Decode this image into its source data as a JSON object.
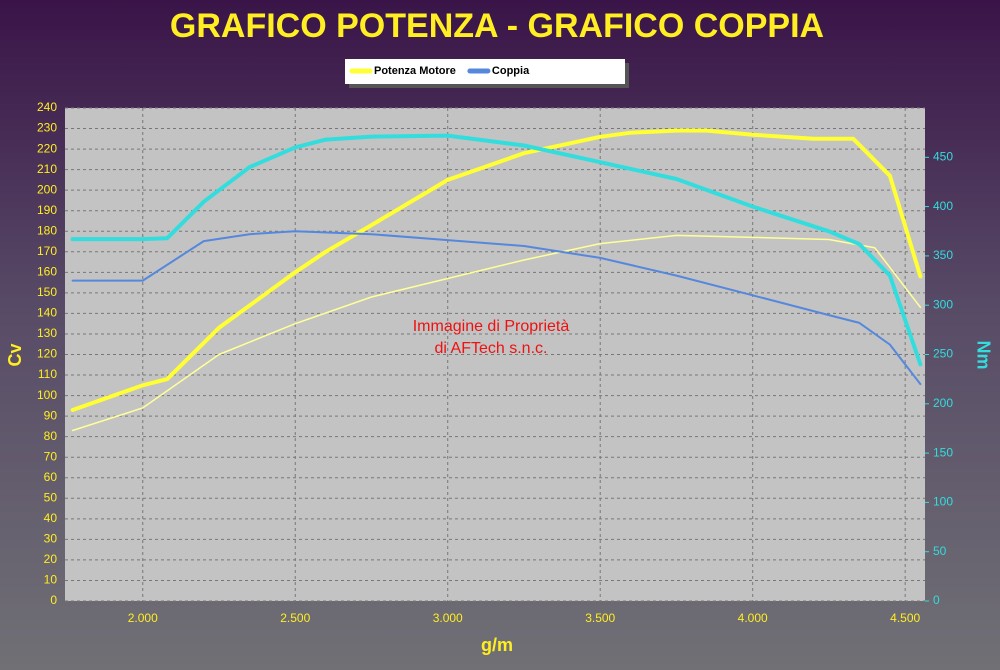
{
  "chart_data": {
    "type": "line",
    "title": "GRAFICO POTENZA - GRAFICO COPPIA",
    "x_label": "g/m",
    "y_label": "Cv",
    "y2_label": "Nm",
    "annotation": [
      "Immagine di Proprietà",
      "di AFTech s.n.c."
    ],
    "xlim": [
      1745,
      4565
    ],
    "xticks": [
      {
        "value": 2000,
        "label": "2.000"
      },
      {
        "value": 2500,
        "label": "2.500"
      },
      {
        "value": 3000,
        "label": "3.000"
      },
      {
        "value": 3500,
        "label": "3.500"
      },
      {
        "value": 4000,
        "label": "4.000"
      },
      {
        "value": 4500,
        "label": "4.500"
      }
    ],
    "ylim": [
      0,
      240
    ],
    "yticks": [
      0,
      10,
      20,
      30,
      40,
      50,
      60,
      70,
      80,
      90,
      100,
      110,
      120,
      130,
      140,
      150,
      160,
      170,
      180,
      190,
      200,
      210,
      220,
      230,
      240
    ],
    "y2lim": [
      0,
      500
    ],
    "y2ticks": [
      0,
      50,
      100,
      150,
      200,
      250,
      300,
      350,
      400,
      450
    ],
    "grid": true,
    "series": [
      {
        "name": "Potenza Motore",
        "color": "#ffff33",
        "line_width": 4,
        "x": [
          1770,
          2000,
          2080,
          2250,
          2500,
          2600,
          2750,
          3000,
          3250,
          3500,
          3600,
          3750,
          3850,
          4000,
          4200,
          4330,
          4450,
          4550
        ],
        "values": [
          93,
          105,
          108,
          133,
          160,
          170,
          183,
          205,
          218,
          226,
          228,
          229,
          229,
          227,
          225,
          225,
          207,
          158
        ]
      },
      {
        "color": "#ffff99",
        "line_width": 1.5,
        "x": [
          1770,
          2000,
          2250,
          2500,
          2750,
          3000,
          3250,
          3500,
          3750,
          4000,
          4250,
          4400,
          4550
        ],
        "values": [
          83,
          94,
          120,
          135,
          148,
          157,
          166,
          174,
          178,
          177,
          176,
          172,
          143
        ]
      },
      {
        "color": "#33dddd",
        "line_width": 4,
        "axis": "y2",
        "x": [
          1770,
          2000,
          2080,
          2200,
          2350,
          2500,
          2600,
          2750,
          3000,
          3250,
          3500,
          3750,
          4000,
          4250,
          4350,
          4450,
          4550
        ],
        "values": [
          367,
          367,
          368,
          405,
          440,
          460,
          468,
          471,
          472,
          462,
          445,
          428,
          400,
          375,
          362,
          330,
          240
        ]
      },
      {
        "name": "Coppia",
        "color": "#5588dd",
        "line_width": 2,
        "axis": "y2",
        "x": [
          1770,
          2000,
          2200,
          2350,
          2500,
          2750,
          3000,
          3250,
          3500,
          3750,
          4000,
          4250,
          4350,
          4450,
          4550
        ],
        "values": [
          325,
          325,
          365,
          372,
          375,
          372,
          366,
          360,
          348,
          330,
          310,
          290,
          282,
          260,
          220
        ]
      }
    ]
  }
}
